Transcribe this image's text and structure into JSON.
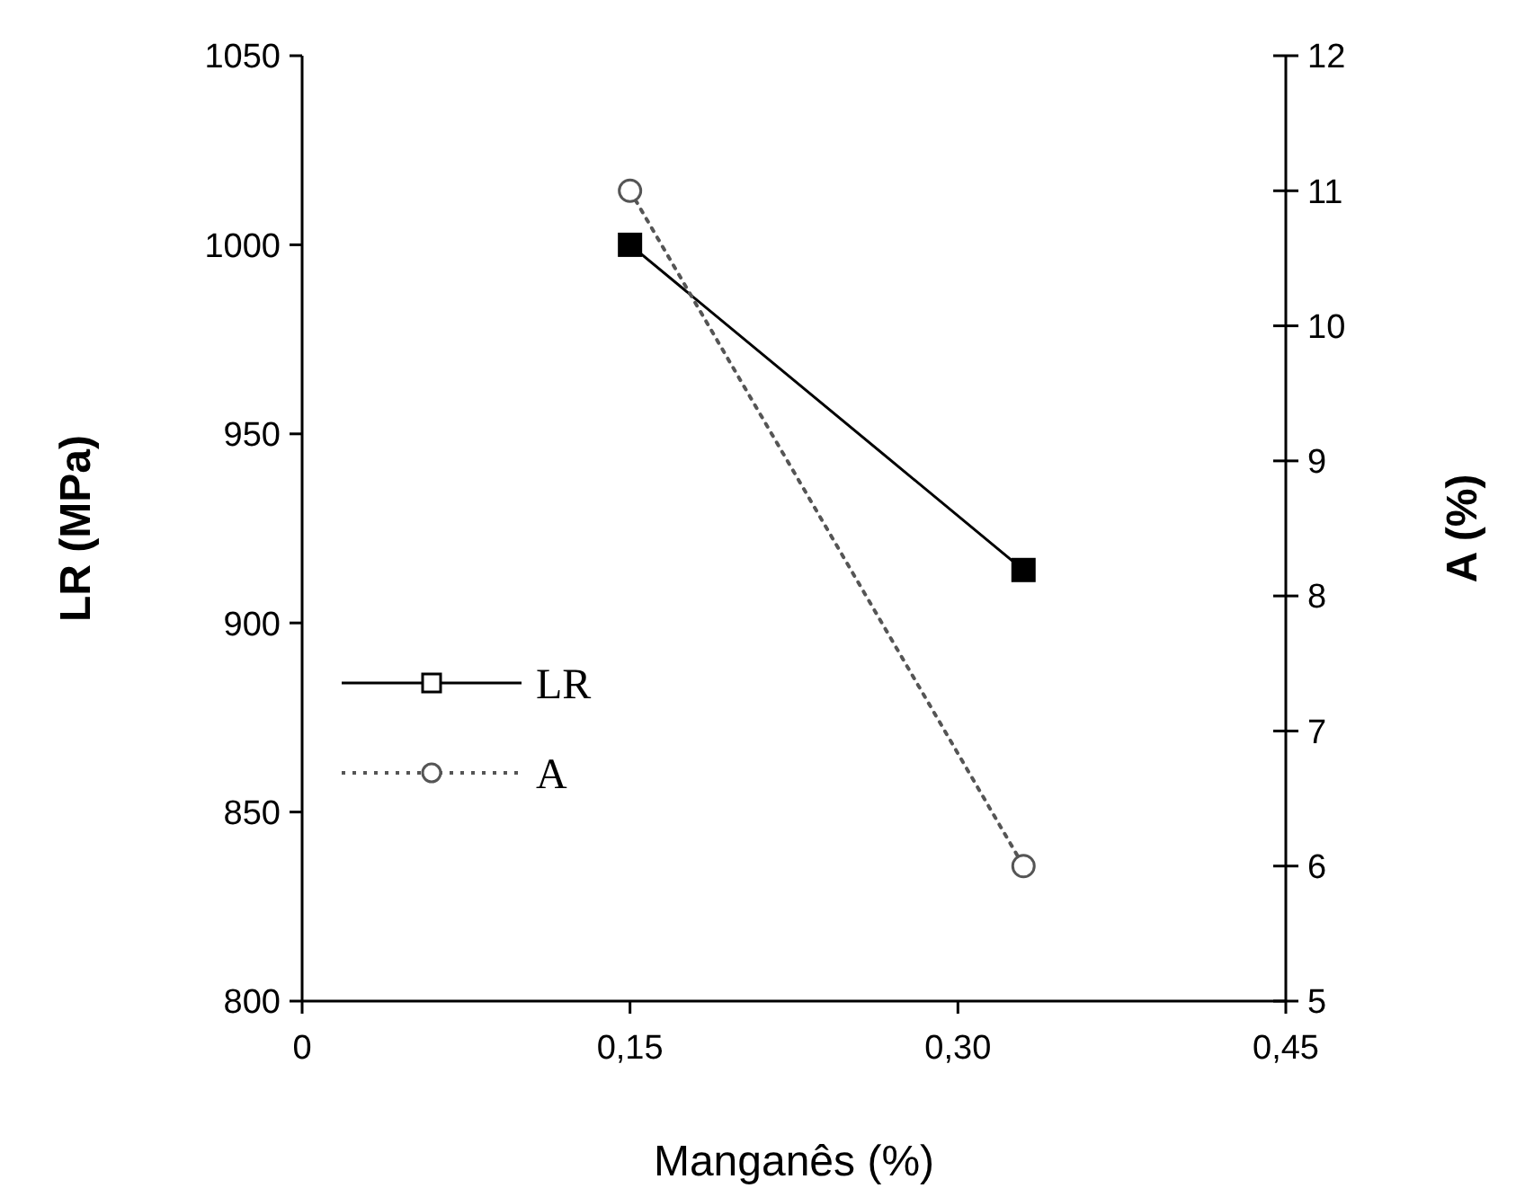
{
  "chart_data": {
    "type": "line",
    "xlabel": "Manganês (%)",
    "ylabel": "LR (MPa)",
    "y2label": "A (%)",
    "xlim": [
      0,
      0.45
    ],
    "xticks": [
      {
        "value": 0,
        "label": "0"
      },
      {
        "value": 0.15,
        "label": "0,15"
      },
      {
        "value": 0.3,
        "label": "0,30"
      },
      {
        "value": 0.45,
        "label": "0,45"
      }
    ],
    "ylim": [
      800,
      1050
    ],
    "yticks": [
      800,
      850,
      900,
      950,
      1000,
      1050
    ],
    "y2lim": [
      5,
      12
    ],
    "y2ticks": [
      5,
      6,
      7,
      8,
      9,
      10,
      {
        "value": 11,
        "label": "11"
      },
      12
    ],
    "legend": "left",
    "grid": false,
    "x": [
      0.15,
      0.33
    ],
    "series": [
      {
        "name": "LR",
        "color": "#000000",
        "values": [
          1000,
          914
        ],
        "marker": "square",
        "line_style": "solid"
      },
      {
        "name": "A",
        "color": "#555555",
        "values": [
          11.0,
          6.0
        ],
        "axis": "y2",
        "marker": "circle",
        "line_style": "dotted"
      }
    ]
  }
}
